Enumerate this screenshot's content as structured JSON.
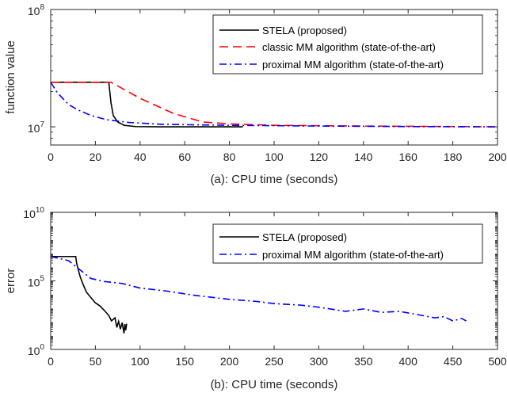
{
  "chart_data": [
    {
      "type": "line",
      "xlabel": "(a): CPU time (seconds)",
      "ylabel": "function value",
      "xlim": [
        0,
        200
      ],
      "ylim": [
        7000000,
        100000000
      ],
      "yscale": "log",
      "xticks": [
        0,
        20,
        40,
        60,
        80,
        100,
        120,
        140,
        160,
        180,
        200
      ],
      "yticks_major": [
        {
          "value": 10000000,
          "base": "10",
          "exp": "7"
        },
        {
          "value": 100000000,
          "base": "10",
          "exp": "8"
        }
      ],
      "legend_position": "top-right",
      "series": [
        {
          "name": "STELA (proposed)",
          "color": "#000000",
          "dash": "solid",
          "points": [
            [
              0,
              24000000
            ],
            [
              26,
              24000000
            ],
            [
              27,
              16000000
            ],
            [
              28,
              12500000
            ],
            [
              30,
              11000000
            ],
            [
              33,
              10300000
            ],
            [
              38,
              10050000
            ],
            [
              50,
              10000000
            ],
            [
              86,
              10000000
            ]
          ]
        },
        {
          "name": "classic MM algorithm (state-of-the-art)",
          "color": "#ff0000",
          "dash": "dashed",
          "points": [
            [
              0,
              24000000
            ],
            [
              27,
              24000000
            ],
            [
              40,
              17500000
            ],
            [
              55,
              13000000
            ],
            [
              68,
              11000000
            ],
            [
              80,
              10600000
            ],
            [
              100,
              10300000
            ],
            [
              140,
              10150000
            ],
            [
              200,
              10000000
            ]
          ]
        },
        {
          "name": "proximal MM algorithm (state-of-the-art)",
          "color": "#0000ff",
          "dash": "dashdot",
          "points": [
            [
              0,
              24000000
            ],
            [
              3,
              19500000
            ],
            [
              8,
              15500000
            ],
            [
              12,
              14000000
            ],
            [
              18,
              12500000
            ],
            [
              25,
              11500000
            ],
            [
              35,
              10900000
            ],
            [
              50,
              10500000
            ],
            [
              80,
              10300000
            ],
            [
              120,
              10150000
            ],
            [
              160,
              10050000
            ],
            [
              200,
              10000000
            ]
          ]
        }
      ]
    },
    {
      "type": "line",
      "xlabel": "(b): CPU time (seconds)",
      "ylabel": "error",
      "xlim": [
        0,
        500
      ],
      "ylim": [
        1,
        10000000000
      ],
      "yscale": "log",
      "xticks": [
        0,
        50,
        100,
        150,
        200,
        250,
        300,
        350,
        400,
        450,
        500
      ],
      "yticks_major": [
        {
          "value": 1,
          "base": "10",
          "exp": "0"
        },
        {
          "value": 100000,
          "base": "10",
          "exp": "5"
        },
        {
          "value": 10000000000,
          "base": "10",
          "exp": "10"
        }
      ],
      "legend_position": "top-right",
      "series": [
        {
          "name": "STELA (proposed)",
          "color": "#000000",
          "dash": "solid",
          "points": [
            [
              0,
              6000000
            ],
            [
              28,
              6000000
            ],
            [
              29,
              2000000
            ],
            [
              31,
              600000
            ],
            [
              33,
              200000
            ],
            [
              36,
              60000
            ],
            [
              40,
              15000
            ],
            [
              45,
              6000
            ],
            [
              50,
              2500
            ],
            [
              55,
              1500
            ],
            [
              60,
              700
            ],
            [
              65,
              300
            ],
            [
              68,
              120
            ],
            [
              72,
              200
            ],
            [
              74,
              40
            ],
            [
              76,
              110
            ],
            [
              78,
              30
            ],
            [
              80,
              90
            ],
            [
              82,
              15
            ],
            [
              83,
              70
            ],
            [
              84,
              25
            ],
            [
              85,
              75
            ]
          ]
        },
        {
          "name": "proximal MM algorithm (state-of-the-art)",
          "color": "#0000ff",
          "dash": "dashdot",
          "points": [
            [
              0,
              6000000
            ],
            [
              20,
              3000000
            ],
            [
              30,
              900000
            ],
            [
              45,
              150000
            ],
            [
              60,
              90000
            ],
            [
              80,
              65000
            ],
            [
              100,
              30000
            ],
            [
              130,
              18000
            ],
            [
              160,
              9000
            ],
            [
              200,
              4500
            ],
            [
              230,
              3200
            ],
            [
              250,
              2200
            ],
            [
              280,
              1700
            ],
            [
              300,
              1200
            ],
            [
              330,
              600
            ],
            [
              350,
              900
            ],
            [
              370,
              500
            ],
            [
              390,
              600
            ],
            [
              410,
              350
            ],
            [
              430,
              200
            ],
            [
              440,
              250
            ],
            [
              450,
              120
            ],
            [
              460,
              180
            ],
            [
              465,
              120
            ]
          ]
        }
      ]
    }
  ]
}
